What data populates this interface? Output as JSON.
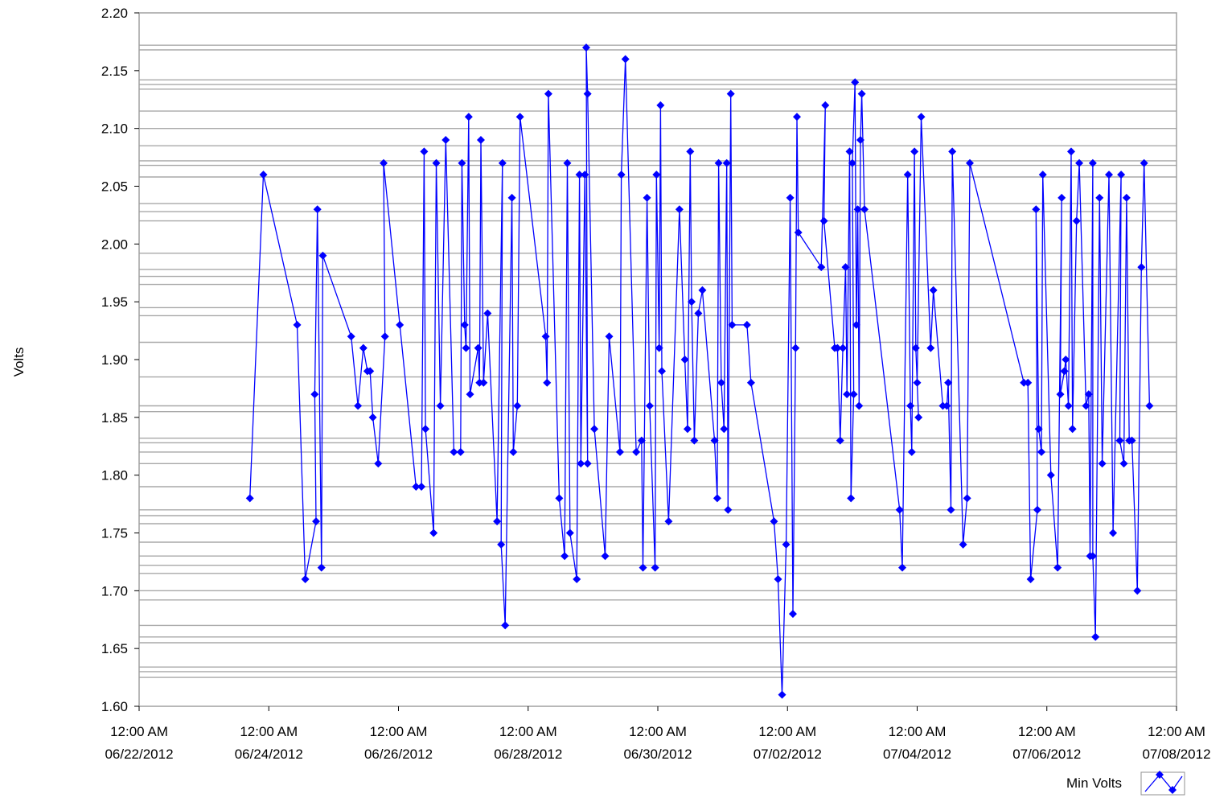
{
  "chart_data": {
    "type": "line",
    "ylabel": "Volts",
    "ylim": [
      1.6,
      2.2
    ],
    "yticks": [
      "1.60",
      "1.65",
      "1.70",
      "1.75",
      "1.80",
      "1.85",
      "1.90",
      "1.95",
      "2.00",
      "2.05",
      "2.10",
      "2.15",
      "2.20"
    ],
    "xlim": [
      "2012-06-22 00:00",
      "2012-07-08 00:00"
    ],
    "xticks": [
      {
        "time": "12:00 AM",
        "date": "06/22/2012"
      },
      {
        "time": "12:00 AM",
        "date": "06/24/2012"
      },
      {
        "time": "12:00 AM",
        "date": "06/26/2012"
      },
      {
        "time": "12:00 AM",
        "date": "06/28/2012"
      },
      {
        "time": "12:00 AM",
        "date": "06/30/2012"
      },
      {
        "time": "12:00 AM",
        "date": "07/02/2012"
      },
      {
        "time": "12:00 AM",
        "date": "07/04/2012"
      },
      {
        "time": "12:00 AM",
        "date": "07/06/2012"
      },
      {
        "time": "12:00 AM",
        "date": "07/08/2012"
      }
    ],
    "reference_lines": [
      2.168,
      2.172,
      2.134,
      2.138,
      2.142,
      2.115,
      2.1,
      2.085,
      2.068,
      2.072,
      2.058,
      2.035,
      2.028,
      2.02,
      1.992,
      1.978,
      1.972,
      1.965,
      1.945,
      1.938,
      1.915,
      1.885,
      1.86,
      1.855,
      1.832,
      1.828,
      1.82,
      1.81,
      1.79,
      1.77,
      1.765,
      1.758,
      1.742,
      1.73,
      1.722,
      1.715,
      1.7,
      1.692,
      1.67,
      1.66,
      1.655,
      1.63,
      1.634,
      1.625
    ],
    "legend_position": "bottom-right",
    "series": [
      {
        "name": "Min Volts",
        "color": "#0000ff",
        "points": [
          [
            "2012-06-23 17:00",
            1.78
          ],
          [
            "2012-06-23 22:00",
            2.06
          ],
          [
            "2012-06-24 10:30",
            1.93
          ],
          [
            "2012-06-24 13:30",
            1.71
          ],
          [
            "2012-06-24 17:30",
            1.76
          ],
          [
            "2012-06-24 17:00",
            1.87
          ],
          [
            "2012-06-24 18:00",
            2.03
          ],
          [
            "2012-06-24 19:30",
            1.72
          ],
          [
            "2012-06-24 20:00",
            1.99
          ],
          [
            "2012-06-25 06:30",
            1.92
          ],
          [
            "2012-06-25 09:00",
            1.86
          ],
          [
            "2012-06-25 11:00",
            1.91
          ],
          [
            "2012-06-25 12:30",
            1.89
          ],
          [
            "2012-06-25 13:30",
            1.89
          ],
          [
            "2012-06-25 14:30",
            1.85
          ],
          [
            "2012-06-25 16:30",
            1.81
          ],
          [
            "2012-06-25 19:00",
            1.92
          ],
          [
            "2012-06-25 18:30",
            2.07
          ],
          [
            "2012-06-26 00:30",
            1.93
          ],
          [
            "2012-06-26 06:30",
            1.79
          ],
          [
            "2012-06-26 08:30",
            1.79
          ],
          [
            "2012-06-26 09:30",
            2.08
          ],
          [
            "2012-06-26 10:00",
            1.84
          ],
          [
            "2012-06-26 13:00",
            1.75
          ],
          [
            "2012-06-26 14:00",
            2.07
          ],
          [
            "2012-06-26 15:30",
            1.86
          ],
          [
            "2012-06-26 17:30",
            2.09
          ],
          [
            "2012-06-26 20:30",
            1.82
          ],
          [
            "2012-06-26 23:00",
            1.82
          ],
          [
            "2012-06-26 23:30",
            2.07
          ],
          [
            "2012-06-27 00:30",
            1.93
          ],
          [
            "2012-06-27 01:00",
            1.91
          ],
          [
            "2012-06-27 02:00",
            2.11
          ],
          [
            "2012-06-27 02:30",
            1.87
          ],
          [
            "2012-06-27 05:30",
            1.91
          ],
          [
            "2012-06-27 06:00",
            1.88
          ],
          [
            "2012-06-27 06:30",
            2.09
          ],
          [
            "2012-06-27 07:30",
            1.88
          ],
          [
            "2012-06-27 09:00",
            1.94
          ],
          [
            "2012-06-27 12:30",
            1.76
          ],
          [
            "2012-06-27 14:30",
            2.07
          ],
          [
            "2012-06-27 14:00",
            1.74
          ],
          [
            "2012-06-27 15:30",
            1.67
          ],
          [
            "2012-06-27 18:00",
            2.04
          ],
          [
            "2012-06-27 18:30",
            1.82
          ],
          [
            "2012-06-27 20:00",
            1.86
          ],
          [
            "2012-06-27 21:00",
            2.11
          ],
          [
            "2012-06-28 06:30",
            1.92
          ],
          [
            "2012-06-28 07:00",
            1.88
          ],
          [
            "2012-06-28 07:30",
            2.13
          ],
          [
            "2012-06-28 11:30",
            1.78
          ],
          [
            "2012-06-28 13:30",
            1.73
          ],
          [
            "2012-06-28 14:30",
            2.07
          ],
          [
            "2012-06-28 15:30",
            1.75
          ],
          [
            "2012-06-28 18:00",
            1.71
          ],
          [
            "2012-06-28 19:00",
            2.06
          ],
          [
            "2012-06-28 19:30",
            1.81
          ],
          [
            "2012-06-28 21:00",
            2.06
          ],
          [
            "2012-06-28 22:00",
            1.81
          ],
          [
            "2012-06-28 21:30",
            2.17
          ],
          [
            "2012-06-28 22:00",
            2.13
          ],
          [
            "2012-06-29 00:30",
            1.84
          ],
          [
            "2012-06-29 04:30",
            1.73
          ],
          [
            "2012-06-29 06:00",
            1.92
          ],
          [
            "2012-06-29 10:00",
            1.82
          ],
          [
            "2012-06-29 10:30",
            2.06
          ],
          [
            "2012-06-29 12:00",
            2.16
          ],
          [
            "2012-06-29 16:00",
            1.82
          ],
          [
            "2012-06-29 18:00",
            1.83
          ],
          [
            "2012-06-29 18:30",
            1.72
          ],
          [
            "2012-06-29 20:00",
            2.04
          ],
          [
            "2012-06-29 21:00",
            1.86
          ],
          [
            "2012-06-29 23:00",
            1.72
          ],
          [
            "2012-06-29 23:30",
            2.06
          ],
          [
            "2012-06-30 00:30",
            1.91
          ],
          [
            "2012-06-30 01:00",
            2.12
          ],
          [
            "2012-06-30 01:30",
            1.89
          ],
          [
            "2012-06-30 04:00",
            1.76
          ],
          [
            "2012-06-30 08:00",
            2.03
          ],
          [
            "2012-06-30 10:00",
            1.9
          ],
          [
            "2012-06-30 11:00",
            1.84
          ],
          [
            "2012-06-30 12:00",
            2.08
          ],
          [
            "2012-06-30 12:30",
            1.95
          ],
          [
            "2012-06-30 13:30",
            1.83
          ],
          [
            "2012-06-30 15:00",
            1.94
          ],
          [
            "2012-06-30 16:30",
            1.96
          ],
          [
            "2012-06-30 21:00",
            1.83
          ],
          [
            "2012-06-30 22:00",
            1.78
          ],
          [
            "2012-06-30 22:30",
            2.07
          ],
          [
            "2012-06-30 23:30",
            1.88
          ],
          [
            "2012-07-01 00:30",
            1.84
          ],
          [
            "2012-07-01 01:30",
            2.07
          ],
          [
            "2012-07-01 02:00",
            1.77
          ],
          [
            "2012-07-01 03:00",
            2.13
          ],
          [
            "2012-07-01 03:30",
            1.93
          ],
          [
            "2012-07-01 09:00",
            1.93
          ],
          [
            "2012-07-01 10:30",
            1.88
          ],
          [
            "2012-07-01 19:00",
            1.76
          ],
          [
            "2012-07-01 20:30",
            1.71
          ],
          [
            "2012-07-01 22:00",
            1.61
          ],
          [
            "2012-07-01 23:30",
            1.74
          ],
          [
            "2012-07-02 01:00",
            2.04
          ],
          [
            "2012-07-02 02:00",
            1.68
          ],
          [
            "2012-07-02 03:00",
            1.91
          ],
          [
            "2012-07-02 03:30",
            2.11
          ],
          [
            "2012-07-02 04:00",
            2.01
          ],
          [
            "2012-07-02 12:30",
            1.98
          ],
          [
            "2012-07-02 14:00",
            2.12
          ],
          [
            "2012-07-02 13:30",
            2.02
          ],
          [
            "2012-07-02 17:30",
            1.91
          ],
          [
            "2012-07-02 18:30",
            1.91
          ],
          [
            "2012-07-02 19:30",
            1.83
          ],
          [
            "2012-07-02 20:30",
            1.91
          ],
          [
            "2012-07-02 21:30",
            1.98
          ],
          [
            "2012-07-02 22:00",
            1.87
          ],
          [
            "2012-07-02 23:00",
            2.08
          ],
          [
            "2012-07-02 23:30",
            1.78
          ],
          [
            "2012-07-03 00:30",
            1.87
          ],
          [
            "2012-07-03 00:00",
            2.07
          ],
          [
            "2012-07-03 01:00",
            2.14
          ],
          [
            "2012-07-03 01:30",
            1.93
          ],
          [
            "2012-07-03 02:00",
            2.03
          ],
          [
            "2012-07-03 02:30",
            1.86
          ],
          [
            "2012-07-03 03:00",
            2.09
          ],
          [
            "2012-07-03 03:30",
            2.13
          ],
          [
            "2012-07-03 04:30",
            2.03
          ],
          [
            "2012-07-03 17:30",
            1.77
          ],
          [
            "2012-07-03 18:30",
            1.72
          ],
          [
            "2012-07-03 20:30",
            2.06
          ],
          [
            "2012-07-03 21:30",
            1.86
          ],
          [
            "2012-07-03 22:00",
            1.82
          ],
          [
            "2012-07-03 23:00",
            2.08
          ],
          [
            "2012-07-03 23:30",
            1.91
          ],
          [
            "2012-07-04 00:30",
            1.85
          ],
          [
            "2012-07-04 00:00",
            1.88
          ],
          [
            "2012-07-04 01:30",
            2.11
          ],
          [
            "2012-07-04 05:00",
            1.91
          ],
          [
            "2012-07-04 06:00",
            1.96
          ],
          [
            "2012-07-04 09:30",
            1.86
          ],
          [
            "2012-07-04 11:00",
            1.86
          ],
          [
            "2012-07-04 11:30",
            1.88
          ],
          [
            "2012-07-04 12:30",
            1.77
          ],
          [
            "2012-07-04 13:00",
            2.08
          ],
          [
            "2012-07-04 17:00",
            1.74
          ],
          [
            "2012-07-04 18:30",
            1.78
          ],
          [
            "2012-07-04 19:30",
            2.07
          ],
          [
            "2012-07-05 15:30",
            1.88
          ],
          [
            "2012-07-05 17:00",
            1.88
          ],
          [
            "2012-07-05 18:00",
            1.71
          ],
          [
            "2012-07-05 20:30",
            1.77
          ],
          [
            "2012-07-05 20:00",
            2.03
          ],
          [
            "2012-07-05 21:00",
            1.84
          ],
          [
            "2012-07-05 22:00",
            1.82
          ],
          [
            "2012-07-05 22:30",
            2.06
          ],
          [
            "2012-07-06 01:30",
            1.8
          ],
          [
            "2012-07-06 04:00",
            1.72
          ],
          [
            "2012-07-06 05:30",
            2.04
          ],
          [
            "2012-07-06 05:00",
            1.87
          ],
          [
            "2012-07-06 06:30",
            1.89
          ],
          [
            "2012-07-06 07:00",
            1.9
          ],
          [
            "2012-07-06 08:00",
            1.86
          ],
          [
            "2012-07-06 09:00",
            2.08
          ],
          [
            "2012-07-06 09:30",
            1.84
          ],
          [
            "2012-07-06 11:00",
            2.02
          ],
          [
            "2012-07-06 12:00",
            2.07
          ],
          [
            "2012-07-06 14:30",
            1.86
          ],
          [
            "2012-07-06 15:30",
            1.87
          ],
          [
            "2012-07-06 16:00",
            1.73
          ],
          [
            "2012-07-06 17:00",
            2.07
          ],
          [
            "2012-07-06 17:00",
            1.73
          ],
          [
            "2012-07-06 18:00",
            1.66
          ],
          [
            "2012-07-06 19:30",
            2.04
          ],
          [
            "2012-07-06 20:30",
            1.81
          ],
          [
            "2012-07-06 23:00",
            2.06
          ],
          [
            "2012-07-07 00:30",
            1.75
          ],
          [
            "2012-07-07 03:30",
            2.06
          ],
          [
            "2012-07-07 03:00",
            1.83
          ],
          [
            "2012-07-07 04:30",
            1.81
          ],
          [
            "2012-07-07 05:30",
            2.04
          ],
          [
            "2012-07-07 06:30",
            1.83
          ],
          [
            "2012-07-07 07:30",
            1.83
          ],
          [
            "2012-07-07 09:30",
            1.7
          ],
          [
            "2012-07-07 11:00",
            1.98
          ],
          [
            "2012-07-07 12:00",
            2.07
          ],
          [
            "2012-07-07 14:00",
            1.86
          ]
        ]
      }
    ]
  }
}
